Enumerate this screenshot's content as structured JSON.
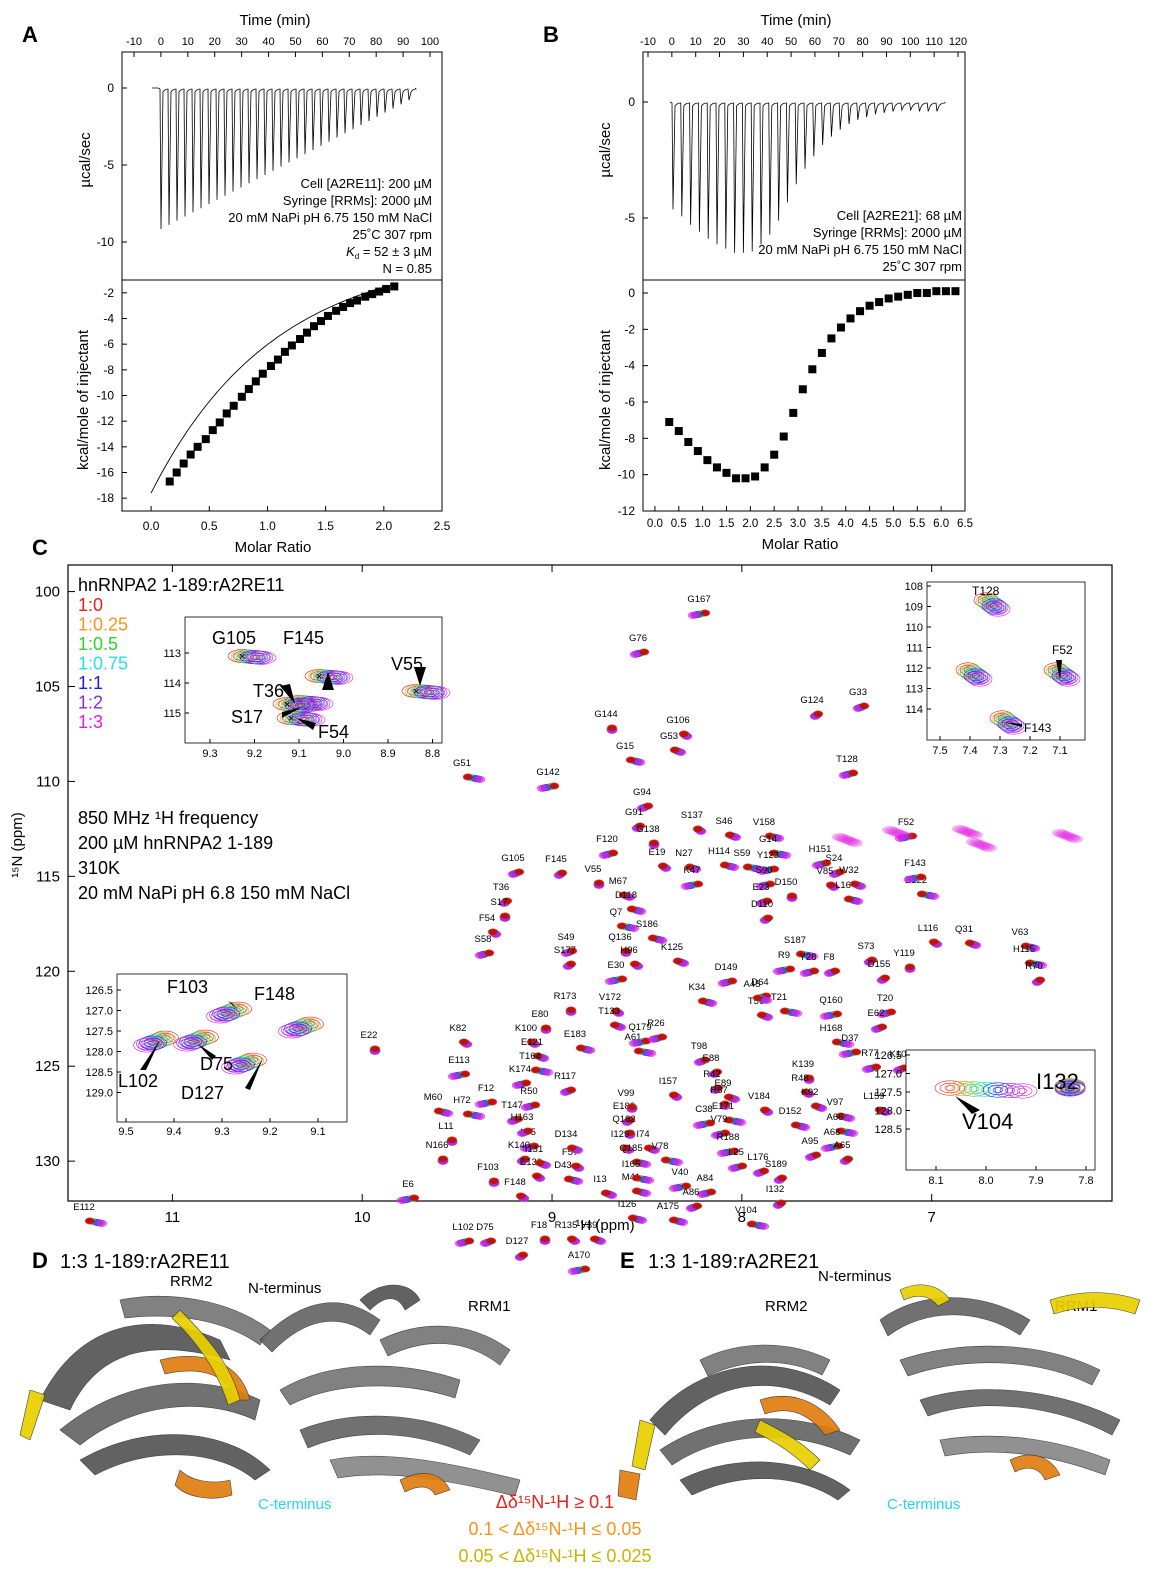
{
  "panels": {
    "A": {
      "letter": "A",
      "top_xlabel": "Time (min)",
      "top_xticks": [
        "-10",
        "0",
        "10",
        "20",
        "30",
        "40",
        "50",
        "60",
        "70",
        "80",
        "90",
        "100"
      ],
      "top_ylabel": "µcal/sec",
      "top_yticks": [
        "0",
        "-5",
        "-10"
      ],
      "annotations": [
        "Cell [A2RE11]: 200 µM",
        "Syringe [RRMs]: 2000 µM",
        "20 mM NaPi pH 6.75 150 mM NaCl",
        "25˚C 307 rpm"
      ],
      "kd_label": "Kd",
      "kd_symbol": "K",
      "kd_sub": "d",
      "kd_value": " = 52 ± 3 µM",
      "n_label": "N = 0.85",
      "bottom_ylabel": "kcal/mole of injectant",
      "bottom_yticks": [
        "-2",
        "-4",
        "-6",
        "-8",
        "-10",
        "-12",
        "-14",
        "-16",
        "-18"
      ],
      "bottom_xlabel": "Molar Ratio",
      "bottom_xticks": [
        "0.0",
        "0.5",
        "1.0",
        "1.5",
        "2.0",
        "2.5"
      ]
    },
    "B": {
      "letter": "B",
      "top_xlabel": "Time (min)",
      "top_xticks": [
        "-10",
        "0",
        "10",
        "20",
        "30",
        "40",
        "50",
        "60",
        "70",
        "80",
        "90",
        "100",
        "110",
        "120"
      ],
      "top_ylabel": "µcal/sec",
      "top_yticks": [
        "0",
        "-5"
      ],
      "annotations": [
        "Cell [A2RE21]: 68 µM",
        "Syringe [RRMs]: 2000 µM",
        "20 mM NaPi pH 6.75 150 mM NaCl",
        "25˚C 307 rpm"
      ],
      "bottom_ylabel": "kcal/mole of injectant",
      "bottom_yticks": [
        "0",
        "-2",
        "-4",
        "-6",
        "-8",
        "-10",
        "-12"
      ],
      "bottom_xlabel": "Molar Ratio",
      "bottom_xticks": [
        "0.0",
        "0.5",
        "1.0",
        "1.5",
        "2.0",
        "2.5",
        "3.0",
        "3.5",
        "4.0",
        "4.5",
        "5.0",
        "5.5",
        "6.0",
        "6.5"
      ]
    },
    "C": {
      "letter": "C",
      "legend_title": "hnRNPA2 1-189:rA2RE11",
      "ratios": [
        {
          "label": "1:0",
          "color": "#e8201c"
        },
        {
          "label": "1:0.25",
          "color": "#f7941d"
        },
        {
          "label": "1:0.5",
          "color": "#2bd52b"
        },
        {
          "label": "1:0.75",
          "color": "#22e0e8"
        },
        {
          "label": "1:1",
          "color": "#1a1aee"
        },
        {
          "label": "1:2",
          "color": "#8a2be2"
        },
        {
          "label": "1:3",
          "color": "#e21ee2"
        }
      ],
      "conditions": [
        "850 MHz ¹H frequency",
        "200 µM hnRNPA2 1-189",
        "310K",
        "20 mM NaPi pH 6.8 150 mM NaCl"
      ],
      "xlabel": "¹H  (ppm)",
      "ylabel": "¹⁵N  (ppm)",
      "xticks": [
        "11",
        "10",
        "9",
        "8",
        "7"
      ],
      "yticks": [
        "100",
        "105",
        "110",
        "115",
        "120",
        "125",
        "130"
      ],
      "inset1": {
        "xticks": [
          "9.3",
          "9.2",
          "9.1",
          "9.0",
          "8.9",
          "8.8"
        ],
        "yticks": [
          "113",
          "114",
          "115"
        ],
        "labels": [
          "G105",
          "F145",
          "V55",
          "T36",
          "S17",
          "F54"
        ]
      },
      "inset2": {
        "xticks": [
          "7.5",
          "7.4",
          "7.3",
          "7.2",
          "7.1"
        ],
        "yticks": [
          "108",
          "109",
          "110",
          "111",
          "112",
          "113",
          "114"
        ],
        "labels": [
          "T128",
          "F52",
          "F143"
        ]
      },
      "inset3": {
        "xticks": [
          "9.5",
          "9.4",
          "9.3",
          "9.2",
          "9.1"
        ],
        "yticks": [
          "126.5",
          "127.0",
          "127.5",
          "128.0",
          "128.5",
          "129.0"
        ],
        "labels": [
          "F103",
          "F148",
          "L102",
          "D75",
          "D127"
        ]
      },
      "inset4": {
        "xticks": [
          "8.1",
          "8.0",
          "7.9",
          "7.8"
        ],
        "yticks": [
          "126.5",
          "127.0",
          "127.5",
          "128.0",
          "128.5"
        ],
        "labels": [
          "I132",
          "V104"
        ]
      },
      "peaks": [
        "G167",
        "G76",
        "G33",
        "G124",
        "G144",
        "G106",
        "G53",
        "G15",
        "G51",
        "G142",
        "T128",
        "G94",
        "G91",
        "G138",
        "S137",
        "S46",
        "V158",
        "G14",
        "F52",
        "F120",
        "G105",
        "F145",
        "V55",
        "E19",
        "N27",
        "H114",
        "S59",
        "Y123",
        "H151",
        "S24",
        "T36",
        "S17",
        "F54",
        "M67",
        "D118",
        "Q7",
        "K47",
        "S90",
        "E23",
        "D110",
        "D150",
        "V85",
        "W32",
        "L16",
        "E122",
        "F143",
        "S58",
        "S49",
        "S177",
        "Q136",
        "H96",
        "K125",
        "S186",
        "S187",
        "R9",
        "Y28",
        "F8",
        "S73",
        "Y119",
        "L116",
        "Q31",
        "V63",
        "H115",
        "E30",
        "D149",
        "D64",
        "D155",
        "R173",
        "V172",
        "T133",
        "K34",
        "T21",
        "Q160",
        "T20",
        "E62",
        "R70",
        "E80",
        "K100",
        "T56",
        "A45",
        "H168",
        "D37",
        "R77",
        "K10",
        "A69",
        "E22",
        "K82",
        "E121",
        "E183",
        "A61",
        "Q179",
        "R26",
        "T98",
        "E88",
        "K139",
        "R48",
        "K92",
        "V97",
        "T164",
        "E113",
        "K174",
        "R117",
        "R42",
        "R87",
        "V184",
        "L159",
        "M60",
        "H72",
        "F12",
        "R50",
        "T147",
        "E180",
        "V99",
        "I157",
        "E89",
        "D152",
        "A66",
        "A68",
        "L35",
        "H163",
        "K140",
        "Q182",
        "I129",
        "I74",
        "Q185",
        "E171",
        "C38",
        "V79",
        "A95",
        "A65",
        "L11",
        "F57",
        "D134",
        "D43",
        "V78",
        "R188",
        "L25",
        "L176",
        "S189",
        "N166",
        "E130",
        "I131",
        "M41",
        "I165",
        "V40",
        "A84",
        "A86",
        "I132",
        "F103",
        "F148",
        "I13",
        "A175",
        "V104",
        "E6",
        "L102",
        "D75",
        "D127",
        "F18",
        "R135",
        "V39",
        "I126",
        "E112",
        "A170"
      ]
    },
    "D": {
      "letter": "D",
      "title": "1:3 1-189:rA2RE11",
      "labels": {
        "rrm2": "RRM2",
        "nterm": "N-terminus",
        "rrm1": "RRM1",
        "cterm": "C-terminus"
      }
    },
    "E": {
      "letter": "E",
      "title": "1:3 1-189:rA2RE21",
      "labels": {
        "rrm2": "RRM2",
        "nterm": "N-terminus",
        "rrm1": "RRM1",
        "cterm": "C-terminus"
      }
    },
    "legend_csp": [
      {
        "text": "Δδ¹⁵N-¹H ≥ 0.1",
        "color": "#e8201c"
      },
      {
        "text": "0.1 < Δδ¹⁵N-¹H ≤ 0.05",
        "color": "#f7941d"
      },
      {
        "text": "0.05 < Δδ¹⁵N-¹H ≤ 0.025",
        "color": "#c9b400"
      }
    ]
  },
  "chart_data": [
    {
      "type": "scatter",
      "panel": "A-bottom",
      "xlabel": "Molar Ratio",
      "ylabel": "kcal/mole of injectant",
      "xlim": [
        -0.25,
        2.5
      ],
      "ylim": [
        -19,
        -1
      ],
      "x": [
        0.16,
        0.22,
        0.28,
        0.34,
        0.4,
        0.47,
        0.53,
        0.59,
        0.65,
        0.71,
        0.78,
        0.84,
        0.9,
        0.96,
        1.03,
        1.09,
        1.15,
        1.21,
        1.28,
        1.34,
        1.4,
        1.46,
        1.52,
        1.59,
        1.65,
        1.71,
        1.77,
        1.84,
        1.9,
        1.96,
        2.02,
        2.09
      ],
      "y": [
        -16.7,
        -16.0,
        -15.3,
        -14.6,
        -14.0,
        -13.4,
        -12.7,
        -12.1,
        -11.4,
        -10.8,
        -10.1,
        -9.5,
        -8.9,
        -8.3,
        -7.7,
        -7.2,
        -6.6,
        -6.1,
        -5.6,
        -5.1,
        -4.6,
        -4.2,
        -3.8,
        -3.4,
        -3.1,
        -2.8,
        -2.6,
        -2.3,
        -2.1,
        -1.9,
        -1.7,
        -1.5
      ]
    },
    {
      "type": "scatter",
      "panel": "B-bottom",
      "xlabel": "Molar Ratio",
      "ylabel": "kcal/mole of injectant",
      "xlim": [
        -0.25,
        6.5
      ],
      "ylim": [
        -12,
        0.5
      ],
      "x": [
        0.3,
        0.5,
        0.7,
        0.9,
        1.1,
        1.3,
        1.5,
        1.7,
        1.9,
        2.1,
        2.3,
        2.5,
        2.7,
        2.9,
        3.1,
        3.3,
        3.5,
        3.7,
        3.9,
        4.1,
        4.3,
        4.5,
        4.7,
        4.9,
        5.1,
        5.3,
        5.5,
        5.7,
        5.9,
        6.1,
        6.3
      ],
      "y": [
        -7.1,
        -7.6,
        -8.2,
        -8.7,
        -9.2,
        -9.6,
        -9.9,
        -10.2,
        -10.2,
        -10.1,
        -9.6,
        -8.9,
        -7.9,
        -6.6,
        -5.3,
        -4.2,
        -3.3,
        -2.5,
        -1.9,
        -1.4,
        -1.0,
        -0.7,
        -0.5,
        -0.3,
        -0.2,
        -0.1,
        0.0,
        0.0,
        0.1,
        0.1,
        0.1
      ]
    }
  ]
}
